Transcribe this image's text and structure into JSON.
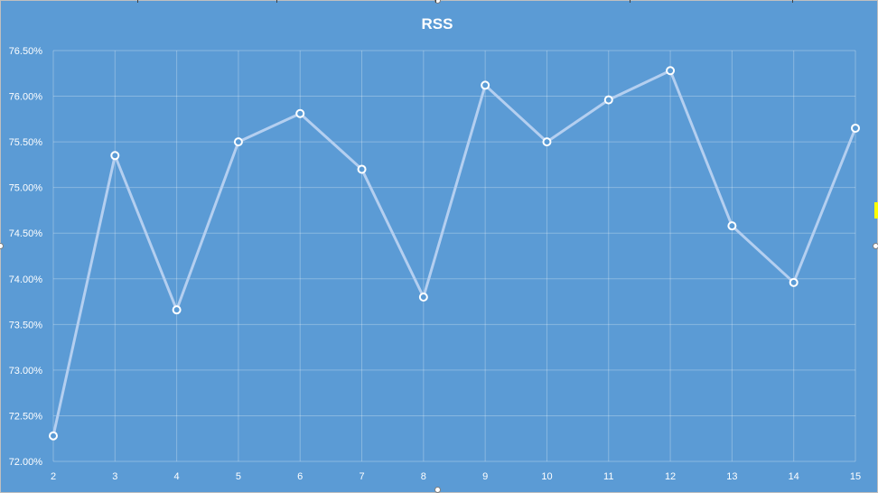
{
  "chart_data": {
    "type": "line",
    "title": "RSS",
    "xlabel": "",
    "ylabel": "",
    "x": [
      "2",
      "3",
      "4",
      "5",
      "6",
      "7",
      "8",
      "9",
      "10",
      "11",
      "12",
      "13",
      "14",
      "15"
    ],
    "series": [
      {
        "values": [
          72.28,
          75.35,
          73.66,
          75.5,
          75.81,
          75.2,
          73.8,
          76.12,
          75.5,
          75.96,
          76.28,
          74.58,
          73.96,
          75.65
        ]
      }
    ],
    "ylim": [
      72.0,
      76.5
    ],
    "yticks": [
      72.0,
      72.5,
      73.0,
      73.5,
      74.0,
      74.5,
      75.0,
      75.5,
      76.0,
      76.5
    ],
    "ytick_format": "percent_2dp",
    "grid": true,
    "legend": "none",
    "colors": {
      "background": "#5b9bd5",
      "line": "#b4cff0",
      "marker_fill": "#5b9bd5",
      "marker_stroke": "#ffffff",
      "text": "#ffffff"
    }
  }
}
